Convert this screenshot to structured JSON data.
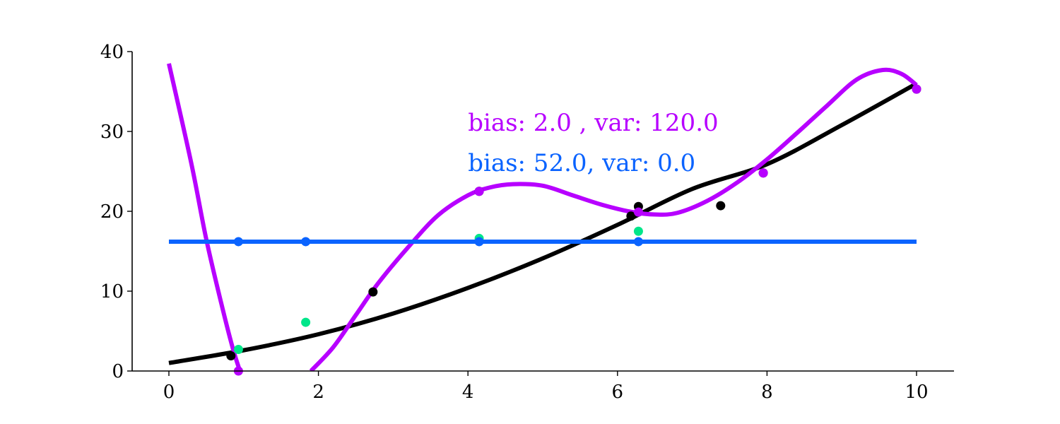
{
  "chart_data": {
    "type": "scatter",
    "title": "",
    "xlabel": "",
    "ylabel": "",
    "xlim": [
      -0.5,
      10.5
    ],
    "ylim": [
      0,
      40
    ],
    "grid": false,
    "xticks": [
      0,
      2,
      4,
      6,
      8,
      10
    ],
    "yticks": [
      0,
      10,
      20,
      30,
      40
    ],
    "annotations": [
      {
        "text": "bias: 2.0 , var: 120.0",
        "color": "#b700ff"
      },
      {
        "text": "bias: 52.0, var: 0.0",
        "color": "#0a63ff"
      }
    ],
    "series": [
      {
        "kind": "line",
        "color": "#000000",
        "x": [
          0,
          1,
          2,
          3,
          4,
          5,
          6,
          7,
          8,
          9,
          10
        ],
        "y": [
          1.0,
          2.6,
          4.6,
          7.2,
          10.4,
          14.1,
          18.3,
          22.8,
          25.9,
          30.8,
          36.0
        ]
      },
      {
        "kind": "line",
        "color": "#b700ff",
        "x": [
          0.0,
          0.3,
          0.5,
          0.7,
          0.85,
          0.95,
          1.9,
          2.2,
          2.5,
          2.8,
          3.2,
          3.6,
          4.0,
          4.3,
          4.6,
          5.0,
          5.4,
          5.8,
          6.2,
          6.5,
          6.8,
          7.2,
          7.6,
          8.0,
          8.4,
          8.8,
          9.2,
          9.55,
          9.8,
          10.0
        ],
        "y": [
          38.5,
          26.0,
          16.5,
          8.5,
          3.0,
          0.0,
          0.0,
          3.0,
          7.0,
          11.0,
          15.5,
          19.5,
          22.0,
          23.0,
          23.4,
          23.2,
          22.0,
          20.8,
          19.9,
          19.6,
          19.8,
          21.3,
          23.6,
          26.5,
          29.8,
          33.2,
          36.5,
          37.7,
          37.2,
          35.8
        ]
      },
      {
        "kind": "line",
        "color": "#0a63ff",
        "x": [
          0,
          10
        ],
        "y": [
          16.2,
          16.2
        ]
      },
      {
        "kind": "points",
        "color": "#000000",
        "x": [
          0.83,
          2.73,
          4.15,
          6.18,
          6.28,
          7.38,
          7.95,
          10.0
        ],
        "y": [
          1.9,
          9.9,
          22.5,
          19.4,
          20.6,
          20.7,
          24.8,
          35.3
        ]
      },
      {
        "kind": "points",
        "color": "#b700ff",
        "x": [
          0.93,
          4.15,
          6.28,
          7.95,
          10.0
        ],
        "y": [
          0.0,
          22.5,
          19.9,
          24.8,
          35.3
        ]
      },
      {
        "kind": "points",
        "color": "#00e68a",
        "x": [
          0.93,
          1.83,
          4.15,
          6.28
        ],
        "y": [
          2.7,
          6.1,
          16.6,
          17.5
        ]
      },
      {
        "kind": "points",
        "color": "#0a63ff",
        "x": [
          0.93,
          1.83,
          4.15,
          6.28
        ],
        "y": [
          16.2,
          16.2,
          16.2,
          16.2
        ]
      }
    ]
  }
}
